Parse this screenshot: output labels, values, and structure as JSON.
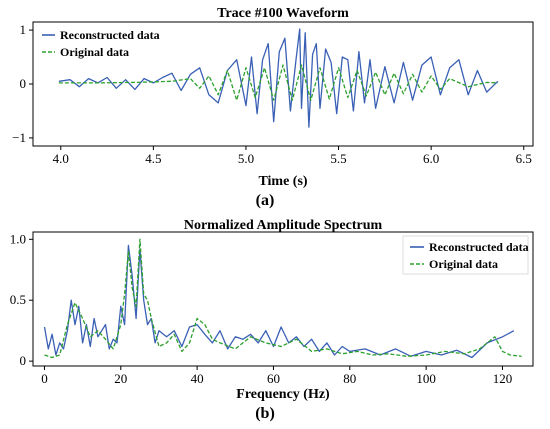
{
  "captions": {
    "a": "(a)",
    "b": "(b)"
  },
  "colors": {
    "reconstructed": "#3a60b5",
    "original": "#2ca02c"
  },
  "chart_data": [
    {
      "type": "line",
      "title": "Trace #100 Waveform",
      "xlabel": "Time (s)",
      "ylabel": "",
      "xlim": [
        3.85,
        6.55
      ],
      "ylim": [
        -1.15,
        1.15
      ],
      "xticks": [
        4.0,
        4.5,
        5.0,
        5.5,
        6.0,
        6.5
      ],
      "xtick_labels": [
        "4.0",
        "4.5",
        "5.0",
        "5.5",
        "6.0",
        "6.5"
      ],
      "yticks": [
        1,
        0,
        -1
      ],
      "ytick_labels": [
        "1",
        "0",
        "−1"
      ],
      "legend_position": "top-left",
      "grid": false,
      "series": [
        {
          "name": "Reconstructed data",
          "style": "solid",
          "x": [
            3.99,
            4.05,
            4.1,
            4.15,
            4.2,
            4.25,
            4.3,
            4.35,
            4.4,
            4.45,
            4.5,
            4.55,
            4.6,
            4.65,
            4.7,
            4.75,
            4.8,
            4.85,
            4.9,
            4.95,
            5.0,
            5.03,
            5.06,
            5.09,
            5.12,
            5.15,
            5.18,
            5.21,
            5.24,
            5.27,
            5.29,
            5.3,
            5.32,
            5.34,
            5.36,
            5.38,
            5.4,
            5.43,
            5.46,
            5.49,
            5.52,
            5.55,
            5.58,
            5.61,
            5.64,
            5.67,
            5.7,
            5.75,
            5.8,
            5.85,
            5.9,
            5.95,
            6.0,
            6.05,
            6.1,
            6.15,
            6.2,
            6.25,
            6.3,
            6.36
          ],
          "y": [
            0.05,
            0.08,
            -0.05,
            0.1,
            0.02,
            0.12,
            -0.08,
            0.08,
            -0.1,
            0.1,
            0.02,
            0.12,
            0.2,
            -0.12,
            0.18,
            0.3,
            -0.2,
            -0.35,
            0.25,
            0.45,
            -0.4,
            0.5,
            -0.55,
            0.45,
            0.75,
            -0.7,
            0.6,
            0.85,
            -0.5,
            0.45,
            1.02,
            -0.45,
            0.95,
            -0.8,
            0.55,
            0.75,
            -0.45,
            0.65,
            0.4,
            -0.55,
            0.5,
            0.45,
            -0.5,
            0.6,
            -0.35,
            0.45,
            -0.45,
            0.32,
            -0.35,
            0.4,
            -0.3,
            0.35,
            0.5,
            -0.2,
            0.3,
            0.45,
            -0.2,
            0.25,
            -0.15,
            0.05
          ]
        },
        {
          "name": "Original data",
          "style": "dashed",
          "x": [
            3.99,
            4.2,
            4.4,
            4.6,
            4.7,
            4.75,
            4.8,
            4.85,
            4.9,
            4.95,
            5.0,
            5.05,
            5.1,
            5.15,
            5.2,
            5.25,
            5.3,
            5.35,
            5.4,
            5.45,
            5.5,
            5.55,
            5.6,
            5.65,
            5.7,
            5.75,
            5.8,
            5.85,
            5.9,
            5.95,
            6.0,
            6.05,
            6.1,
            6.2,
            6.3,
            6.36
          ],
          "y": [
            0.02,
            0.02,
            0.03,
            0.05,
            0.1,
            -0.08,
            0.15,
            -0.2,
            0.25,
            -0.3,
            0.3,
            -0.25,
            0.3,
            -0.3,
            0.35,
            -0.3,
            0.35,
            -0.3,
            0.3,
            -0.28,
            0.3,
            -0.25,
            0.25,
            -0.22,
            0.22,
            -0.2,
            0.2,
            -0.18,
            0.18,
            -0.15,
            0.15,
            -0.1,
            0.1,
            -0.05,
            0.03,
            0.02
          ]
        }
      ]
    },
    {
      "type": "line",
      "title": "Normalized Amplitude Spectrum",
      "xlabel": "Frequency (Hz)",
      "ylabel": "",
      "xlim": [
        -3,
        128
      ],
      "ylim": [
        -0.04,
        1.06
      ],
      "xticks": [
        0,
        20,
        40,
        60,
        80,
        100,
        120
      ],
      "xtick_labels": [
        "0",
        "20",
        "40",
        "60",
        "80",
        "100",
        "120"
      ],
      "yticks": [
        1.0,
        0.5,
        0
      ],
      "ytick_labels": [
        "1.0",
        "0.5",
        "0"
      ],
      "legend_position": "top-right",
      "grid": false,
      "series": [
        {
          "name": "Reconstructed data",
          "style": "solid",
          "x": [
            0,
            1,
            2,
            3,
            4,
            5,
            6,
            7,
            8,
            9,
            10,
            11,
            12,
            13,
            14,
            15,
            16,
            17,
            18,
            19,
            20,
            21,
            22,
            23,
            24,
            25,
            26,
            27,
            28,
            29,
            30,
            32,
            34,
            36,
            38,
            40,
            42,
            44,
            46,
            48,
            50,
            52,
            54,
            56,
            58,
            60,
            62,
            64,
            66,
            68,
            70,
            72,
            74,
            76,
            78,
            80,
            84,
            88,
            92,
            96,
            100,
            104,
            108,
            112,
            116,
            120,
            123
          ],
          "y": [
            0.28,
            0.1,
            0.22,
            0.05,
            0.15,
            0.1,
            0.25,
            0.5,
            0.3,
            0.45,
            0.15,
            0.3,
            0.12,
            0.35,
            0.2,
            0.25,
            0.3,
            0.1,
            0.18,
            0.15,
            0.45,
            0.3,
            0.95,
            0.7,
            0.35,
            0.92,
            0.5,
            0.3,
            0.35,
            0.15,
            0.25,
            0.2,
            0.25,
            0.12,
            0.28,
            0.3,
            0.22,
            0.15,
            0.25,
            0.1,
            0.2,
            0.18,
            0.22,
            0.15,
            0.25,
            0.12,
            0.28,
            0.15,
            0.2,
            0.12,
            0.18,
            0.08,
            0.15,
            0.05,
            0.12,
            0.08,
            0.1,
            0.05,
            0.1,
            0.04,
            0.08,
            0.05,
            0.09,
            0.03,
            0.15,
            0.2,
            0.25
          ]
        },
        {
          "name": "Original data",
          "style": "dashed",
          "x": [
            0,
            2,
            4,
            6,
            8,
            10,
            12,
            14,
            16,
            18,
            20,
            21,
            22,
            23,
            24,
            25,
            26,
            27,
            28,
            30,
            32,
            34,
            36,
            38,
            40,
            42,
            44,
            46,
            50,
            54,
            58,
            62,
            66,
            70,
            74,
            78,
            82,
            86,
            90,
            95,
            100,
            105,
            110,
            114,
            118,
            120,
            122,
            125
          ],
          "y": [
            0.05,
            0.03,
            0.05,
            0.3,
            0.48,
            0.35,
            0.2,
            0.25,
            0.18,
            0.1,
            0.3,
            0.55,
            0.9,
            0.6,
            0.45,
            1.0,
            0.55,
            0.5,
            0.35,
            0.12,
            0.15,
            0.22,
            0.08,
            0.15,
            0.35,
            0.3,
            0.18,
            0.15,
            0.1,
            0.2,
            0.15,
            0.12,
            0.18,
            0.08,
            0.1,
            0.06,
            0.08,
            0.05,
            0.06,
            0.04,
            0.05,
            0.08,
            0.06,
            0.1,
            0.2,
            0.08,
            0.05,
            0.04
          ]
        }
      ]
    }
  ]
}
